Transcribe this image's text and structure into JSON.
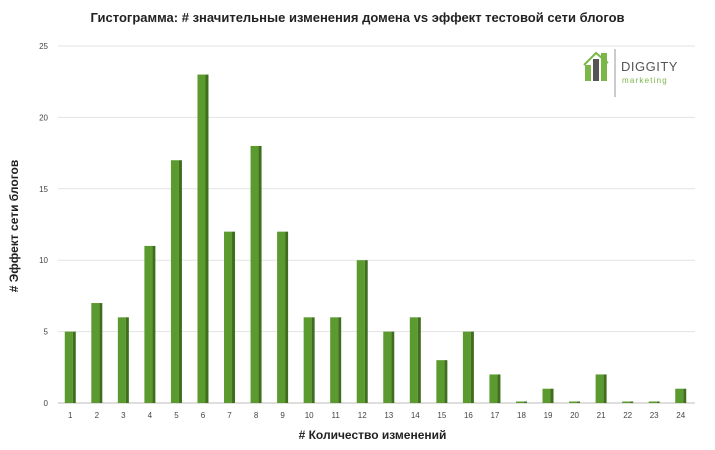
{
  "chart_data": {
    "type": "bar",
    "title": "Гистограмма: # значительные изменения домена vs эффект тестовой сети блогов",
    "xlabel": "# Количество изменений",
    "ylabel": "# Эффект сети блогов",
    "categories": [
      "1",
      "2",
      "3",
      "4",
      "5",
      "6",
      "7",
      "8",
      "9",
      "10",
      "11",
      "12",
      "13",
      "14",
      "15",
      "16",
      "17",
      "18",
      "19",
      "20",
      "21",
      "22",
      "23",
      "24"
    ],
    "values": [
      5,
      7,
      6,
      11,
      17,
      23,
      12,
      18,
      12,
      6,
      6,
      10,
      5,
      6,
      3,
      5,
      2,
      0,
      1,
      0,
      2,
      0,
      0,
      1
    ],
    "ylim": [
      0,
      25
    ],
    "yticks": [
      0,
      5,
      10,
      15,
      20,
      25
    ],
    "grid": true,
    "bar_color": "#5b9a2e",
    "bar_side_color": "#3f6e1c"
  },
  "logo": {
    "line1": "DIGGITY",
    "line2": "marketing",
    "color_green": "#7ab648",
    "color_dark": "#555555"
  }
}
